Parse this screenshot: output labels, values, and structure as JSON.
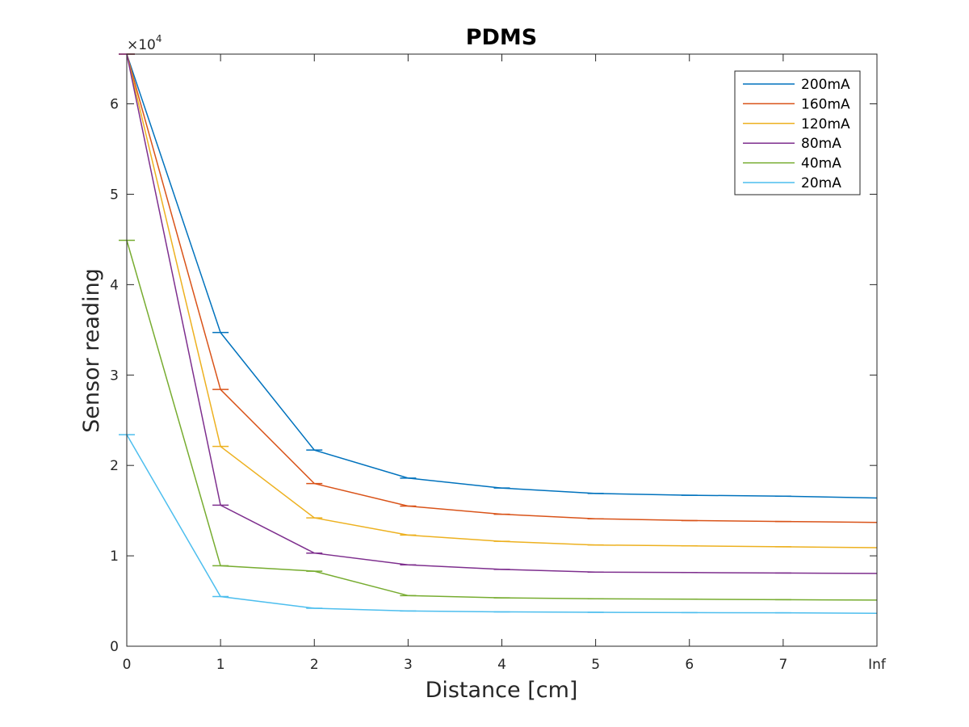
{
  "chart_data": {
    "type": "line",
    "title": "PDMS",
    "xlabel": "Distance [cm]",
    "ylabel": "Sensor reading",
    "x_tick_labels": [
      "0",
      "1",
      "2",
      "3",
      "4",
      "5",
      "6",
      "7",
      "Inf"
    ],
    "y_tick_labels": [
      "0",
      "1",
      "2",
      "3",
      "4",
      "5",
      "6"
    ],
    "y_exponent_base": "×10",
    "y_exponent_power": "4",
    "y_multiplier": 10000,
    "xlim": [
      0,
      8
    ],
    "ylim": [
      0,
      65500
    ],
    "grid": false,
    "legend_position": "top-right",
    "x": [
      0,
      1,
      2,
      3,
      4,
      5,
      6,
      7,
      8
    ],
    "series": [
      {
        "name": "200mA",
        "color": "#0072BD",
        "values": [
          65500,
          34700,
          21700,
          18600,
          17500,
          16900,
          16700,
          16600,
          16400
        ]
      },
      {
        "name": "160mA",
        "color": "#D95319",
        "values": [
          65500,
          28400,
          18000,
          15500,
          14600,
          14100,
          13900,
          13800,
          13700
        ]
      },
      {
        "name": "120mA",
        "color": "#EDB120",
        "values": [
          65500,
          22100,
          14200,
          12300,
          11600,
          11200,
          11100,
          11000,
          10900
        ]
      },
      {
        "name": "80mA",
        "color": "#7E2F8E",
        "values": [
          65500,
          15600,
          10300,
          9000,
          8500,
          8200,
          8150,
          8100,
          8050
        ]
      },
      {
        "name": "40mA",
        "color": "#77AC30",
        "values": [
          44900,
          8900,
          8300,
          5600,
          5350,
          5250,
          5200,
          5150,
          5100
        ]
      },
      {
        "name": "20mA",
        "color": "#4DBEEE",
        "values": [
          23400,
          5500,
          4200,
          3900,
          3800,
          3750,
          3720,
          3700,
          3650
        ]
      }
    ]
  }
}
